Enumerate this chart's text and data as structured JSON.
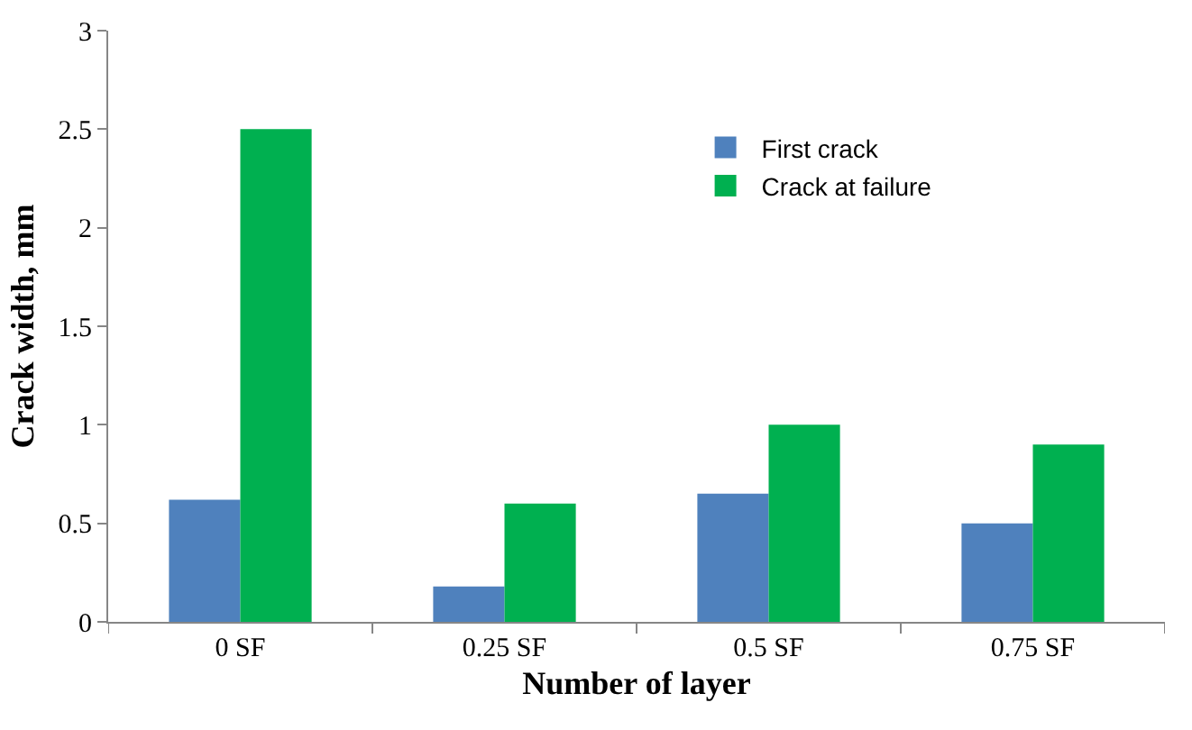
{
  "chart_data": {
    "type": "bar",
    "xlabel": "Number of layer",
    "ylabel": "Crack width, mm",
    "categories": [
      "0 SF",
      "0.25 SF",
      "0.5 SF",
      "0.75 SF"
    ],
    "series": [
      {
        "name": "First crack",
        "color": "#4f81bd",
        "values": [
          0.62,
          0.18,
          0.65,
          0.5
        ]
      },
      {
        "name": "Crack at failure",
        "color": "#00b050",
        "values": [
          2.5,
          0.6,
          1.0,
          0.9
        ]
      }
    ],
    "ylim": [
      0,
      3
    ],
    "yticks": [
      0,
      0.5,
      1,
      1.5,
      2,
      2.5,
      3
    ],
    "legend": "top right"
  }
}
